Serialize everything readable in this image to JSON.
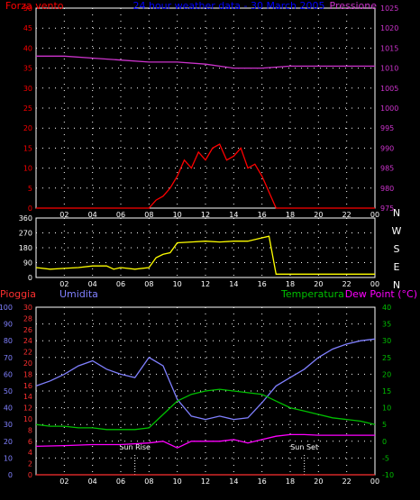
{
  "panel1": {
    "title": "24 hour weather data - 30 March 2005",
    "left_label": "Forza vento",
    "right_label": "Pressione",
    "left_ticks": [
      "0",
      "5",
      "10",
      "15",
      "20",
      "25",
      "30",
      "35",
      "40",
      "45",
      "50"
    ],
    "right_ticks": [
      "975",
      "980",
      "985",
      "990",
      "995",
      "1000",
      "1005",
      "1010",
      "1015",
      "1020",
      "1025"
    ]
  },
  "panel2": {
    "left_ticks": [
      "0",
      "90",
      "180",
      "270",
      "360"
    ],
    "compass": [
      "N",
      "W",
      "S",
      "E",
      "N"
    ]
  },
  "panel3": {
    "label_pioggia": "Pioggia",
    "label_umidita": "Umidita",
    "label_temperatura": "Temperatura",
    "label_dewpoint": "Dew Point (°C)",
    "umid_ticks": [
      "0",
      "10",
      "20",
      "30",
      "40",
      "50",
      "60",
      "70",
      "80",
      "90",
      "100"
    ],
    "rain_ticks": [
      "0",
      "2",
      "4",
      "6",
      "8",
      "10",
      "12",
      "14",
      "16",
      "18",
      "20",
      "22",
      "24",
      "26",
      "28",
      "30"
    ],
    "temp_ticks": [
      "-10",
      "-5",
      "0",
      "5",
      "10",
      "15",
      "20",
      "25",
      "30",
      "35",
      "40"
    ],
    "sunrise": "Sun Rise",
    "sunset": "Sun Set"
  },
  "x_ticks": [
    "02",
    "04",
    "06",
    "08",
    "10",
    "12",
    "14",
    "16",
    "18",
    "20",
    "22",
    "00"
  ],
  "chart_data": [
    {
      "type": "line",
      "x_unit": "hour",
      "xlim": [
        0,
        24
      ],
      "series": [
        {
          "name": "Forza vento",
          "color": "#ff0000",
          "axis": "left",
          "ylim": [
            0,
            50
          ],
          "x": [
            0,
            8,
            8.5,
            9,
            9.5,
            10,
            10.5,
            11,
            11.5,
            12,
            12.5,
            13,
            13.5,
            14,
            14.5,
            15,
            15.5,
            16,
            16.5,
            17,
            24
          ],
          "y": [
            0,
            0,
            2,
            3,
            5,
            8,
            12,
            10,
            14,
            12,
            15,
            16,
            12,
            13,
            15,
            10,
            11,
            8,
            4,
            0,
            0
          ]
        },
        {
          "name": "Pressione",
          "color": "#cc33cc",
          "axis": "right",
          "ylim": [
            975,
            1025
          ],
          "x": [
            0,
            2,
            4,
            6,
            8,
            10,
            12,
            14,
            16,
            18,
            20,
            22,
            24
          ],
          "y": [
            1013,
            1013,
            1012.5,
            1012,
            1011.5,
            1011.5,
            1011,
            1010,
            1010,
            1010.5,
            1010.5,
            1010.5,
            1010.5
          ]
        }
      ]
    },
    {
      "type": "line",
      "x_unit": "hour",
      "xlim": [
        0,
        24
      ],
      "series": [
        {
          "name": "Direzione vento",
          "color": "#ffff00",
          "axis": "left",
          "ylim": [
            0,
            360
          ],
          "x": [
            0,
            1,
            2,
            3,
            4,
            5,
            5.5,
            6,
            7,
            8,
            8.5,
            9,
            9.5,
            10,
            11,
            12,
            13,
            14,
            15,
            16,
            16.5,
            17,
            18,
            20,
            22,
            24
          ],
          "y": [
            60,
            50,
            55,
            60,
            70,
            70,
            50,
            60,
            50,
            60,
            120,
            140,
            150,
            210,
            215,
            220,
            215,
            220,
            220,
            240,
            250,
            20,
            20,
            20,
            20,
            20
          ]
        }
      ]
    },
    {
      "type": "line",
      "x_unit": "hour",
      "xlim": [
        0,
        24
      ],
      "series": [
        {
          "name": "Umidita",
          "color": "#8080ff",
          "axis": "umidita",
          "ylim": [
            0,
            100
          ],
          "x": [
            0,
            1,
            2,
            3,
            4,
            5,
            6,
            7,
            8,
            9,
            10,
            11,
            12,
            13,
            14,
            15,
            16,
            17,
            18,
            19,
            20,
            21,
            22,
            23,
            24
          ],
          "y": [
            53,
            56,
            60,
            65,
            68,
            63,
            60,
            58,
            70,
            65,
            45,
            35,
            33,
            35,
            33,
            34,
            43,
            53,
            58,
            63,
            70,
            75,
            78,
            80,
            81
          ]
        },
        {
          "name": "Temperatura",
          "color": "#00c000",
          "axis": "temperatura",
          "ylim": [
            -10,
            40
          ],
          "x": [
            0,
            1,
            2,
            3,
            4,
            5,
            6,
            7,
            8,
            9,
            10,
            11,
            12,
            13,
            14,
            15,
            16,
            17,
            18,
            19,
            20,
            21,
            22,
            23,
            24
          ],
          "y": [
            5,
            4.5,
            4.5,
            4,
            4,
            3.5,
            3.5,
            3.5,
            4,
            8,
            12,
            14,
            15,
            15.5,
            15,
            14.5,
            14,
            12,
            10,
            9,
            8,
            7,
            6.5,
            6,
            5
          ]
        },
        {
          "name": "Dew Point",
          "color": "#ff00ff",
          "axis": "temperatura",
          "ylim": [
            -10,
            40
          ],
          "x": [
            0,
            2,
            4,
            6,
            8,
            9,
            10,
            11,
            12,
            13,
            14,
            15,
            16,
            17,
            18,
            19,
            20,
            22,
            24
          ],
          "y": [
            -1.5,
            -1.3,
            -1,
            -1,
            -0.5,
            0,
            -2,
            0,
            0,
            0,
            0.5,
            -0.5,
            0.5,
            1.5,
            2,
            2,
            1.8,
            1.8,
            1.8
          ]
        },
        {
          "name": "Pioggia",
          "color": "#ff3030",
          "axis": "pioggia",
          "ylim": [
            0,
            30
          ],
          "x": [
            0,
            24
          ],
          "y": [
            0,
            0
          ]
        }
      ]
    }
  ]
}
